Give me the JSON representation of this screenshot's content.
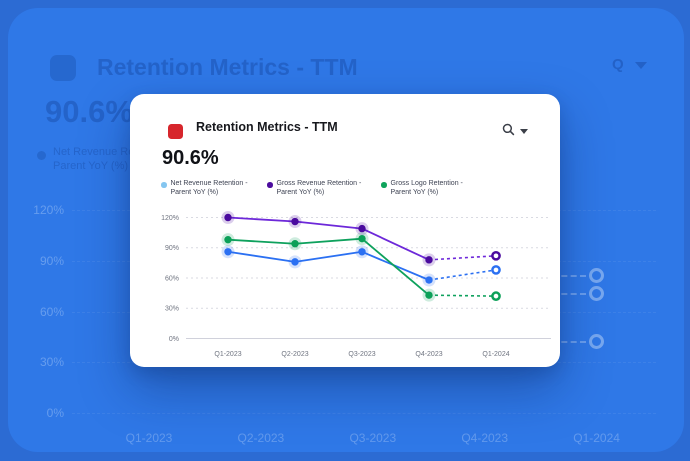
{
  "colors": {
    "background": "#2c6bd3",
    "panel": "#2f78e7",
    "card_background": "#ffffff",
    "card_accent_icon": "#d7262c",
    "gridline": "#d9dae2",
    "axis_text": "#6f7480"
  },
  "card": {
    "title": "Retention Metrics - TTM",
    "kpi_value": "90.6%"
  },
  "chart_data": {
    "type": "line",
    "title": "Retention Metrics - TTM",
    "categories": [
      "Q1-2023",
      "Q2-2023",
      "Q3-2023",
      "Q4-2023",
      "Q1-2024"
    ],
    "series": [
      {
        "name": "Net Revenue Retention - Parent YoY (%)",
        "line_color": "#2b70f2",
        "dot_color": "#2b70f2",
        "legend_dot_color": "#85c6f0",
        "values": [
          86,
          76,
          86,
          58,
          68
        ]
      },
      {
        "name": "Gross Revenue Retention - Parent YoY (%)",
        "line_color": "#6d28d9",
        "dot_color": "#4a0a9e",
        "legend_dot_color": "#4c0d9e",
        "values": [
          120,
          116,
          109,
          78,
          82
        ]
      },
      {
        "name": "Gross Logo Retention - Parent YoY (%)",
        "line_color": "#0ea15d",
        "dot_color": "#0ca058",
        "legend_dot_color": "#0fa45c",
        "values": [
          98,
          94,
          99,
          43,
          42
        ]
      }
    ],
    "y_ticks": [
      {
        "label": "0%",
        "value": 0
      },
      {
        "label": "30%",
        "value": 30
      },
      {
        "label": "60%",
        "value": 60
      },
      {
        "label": "90%",
        "value": 90
      },
      {
        "label": "120%",
        "value": 120
      }
    ],
    "ylim": [
      0,
      120
    ],
    "xlabel": "",
    "ylabel": "",
    "grid": "horizontal-dashed",
    "legend_position": "top",
    "last_segment_style": "dashed",
    "last_point_style": "hollow"
  }
}
